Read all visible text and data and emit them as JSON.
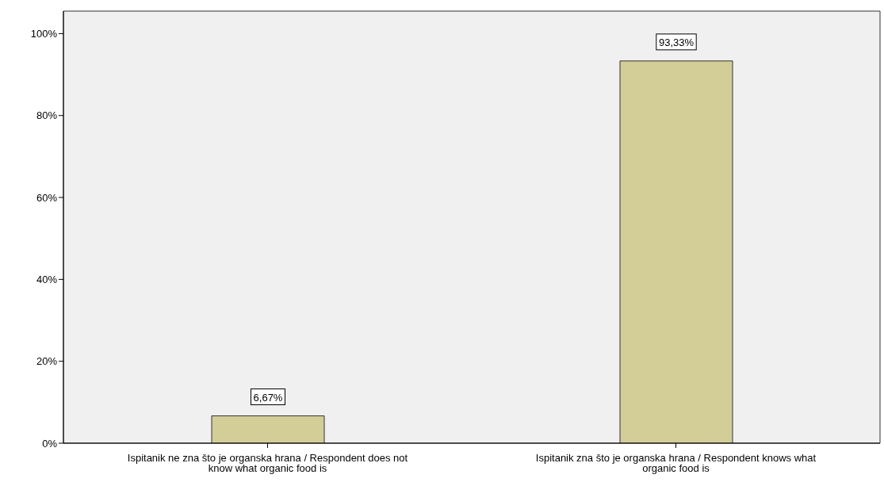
{
  "chart_data": {
    "type": "bar",
    "categories": [
      "Ispitanik ne zna što je organska hrana / Respondent does not know what organic food is",
      "Ispitanik zna što je organska hrana / Respondent knows what organic food is"
    ],
    "values": [
      6.67,
      93.33
    ],
    "value_labels": [
      "6,67%",
      "93,33%"
    ],
    "color": "#d3cd98",
    "ylim": [
      0,
      105.5
    ],
    "yticks": [
      {
        "value": 0,
        "label": "0%"
      },
      {
        "value": 20,
        "label": "20%"
      },
      {
        "value": 40,
        "label": "40%"
      },
      {
        "value": 60,
        "label": "60%"
      },
      {
        "value": 80,
        "label": "80%"
      },
      {
        "value": 100,
        "label": "100%"
      }
    ],
    "grid": false,
    "legend": false
  }
}
